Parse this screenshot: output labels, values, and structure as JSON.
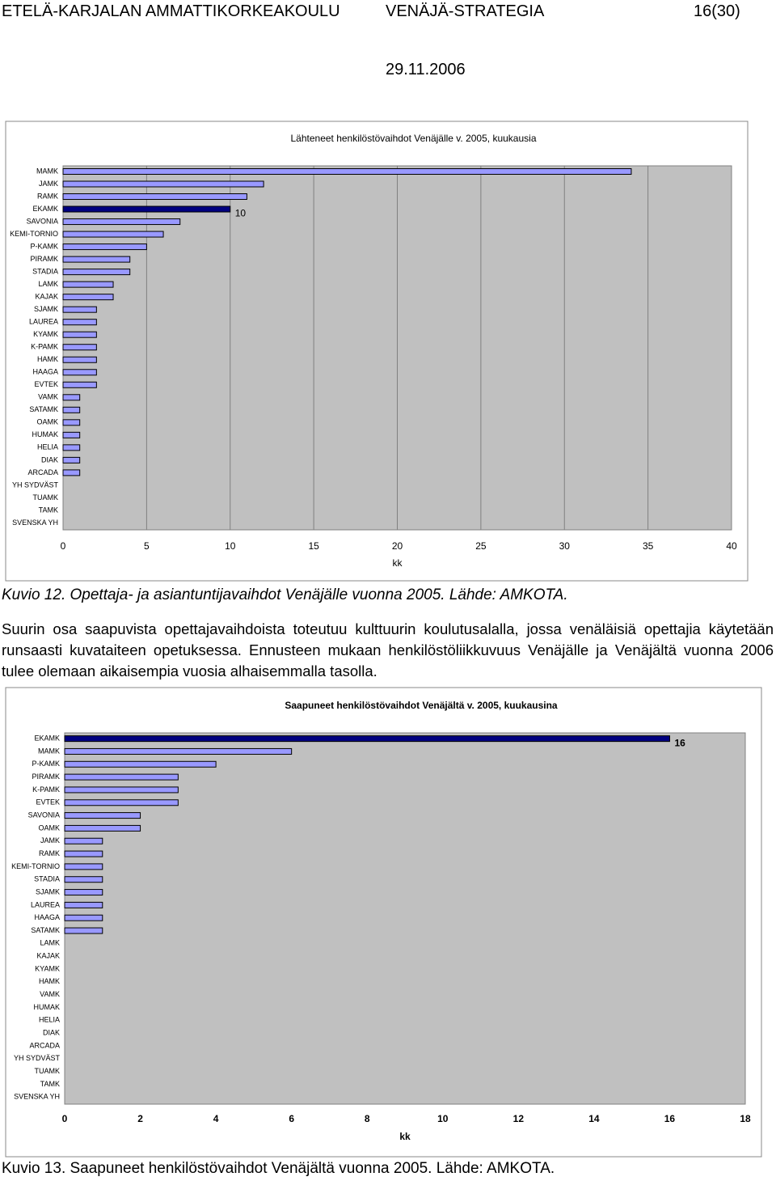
{
  "header": {
    "school": "ETELÄ-KARJALAN AMMATTIKORKEAKOULU",
    "document": "VENÄJÄ-STRATEGIA",
    "page": "16(30)",
    "date": "29.11.2006"
  },
  "captions": [
    "Kuvio 12. Opettaja- ja asiantuntijavaihdot Venäjälle vuonna 2005. Lähde: AMKOTA.",
    "Kuvio 13. Saapuneet henkilöstövaihdot Venäjältä vuonna 2005. Lähde: AMKOTA."
  ],
  "paragraph": "Suurin osa saapuvista opettajavaihdoista toteutuu kulttuurin koulutusalalla, jossa venäläisiä opettajia käytetään runsaasti kuvataiteen opetuksessa. Ennusteen mukaan henkilöstöliikkuvuus Venäjälle ja Venäjältä vuonna 2006 tulee olemaan aikaisempia vuosia alhaisemmalla tasolla.",
  "chart_data": [
    {
      "type": "bar",
      "orientation": "horizontal",
      "title": "Lähteneet henkilöstövaihdot Venäjälle v. 2005, kuukausia",
      "x_label": "kk",
      "categories": [
        "MAMK",
        "JAMK",
        "RAMK",
        "EKAMK",
        "SAVONIA",
        "KEMI-TORNIO",
        "P-KAMK",
        "PIRAMK",
        "STADIA",
        "LAMK",
        "KAJAK",
        "SJAMK",
        "LAUREA",
        "KYAMK",
        "K-PAMK",
        "HAMK",
        "HAAGA",
        "EVTEK",
        "VAMK",
        "SATAMK",
        "OAMK",
        "HUMAK",
        "HELIA",
        "DIAK",
        "ARCADA",
        "YH SYDVÄST",
        "TUAMK",
        "TAMK",
        "SVENSKA YH"
      ],
      "values": [
        34,
        12,
        11,
        10,
        7,
        6,
        5,
        4,
        4,
        3,
        3,
        2,
        2,
        2,
        2,
        2,
        2,
        2,
        1,
        1,
        1,
        1,
        1,
        1,
        1,
        0,
        0,
        0,
        0
      ],
      "value_labels": [
        null,
        null,
        null,
        "10",
        null,
        null,
        null,
        null,
        null,
        null,
        null,
        null,
        null,
        null,
        null,
        null,
        null,
        null,
        null,
        null,
        null,
        null,
        null,
        null,
        null,
        null,
        null,
        null,
        null
      ],
      "color": "#9999ff",
      "highlight_category": "EKAMK",
      "highlight_color": "#000080",
      "xlim": [
        0,
        40
      ],
      "xticks": [
        0,
        5,
        10,
        15,
        20,
        25,
        30,
        35,
        40
      ],
      "grid": true,
      "plot_background": "#c0c0c0"
    },
    {
      "type": "bar",
      "orientation": "horizontal",
      "title": "Saapuneet henkilöstövaihdot Venäjältä v. 2005, kuukausina",
      "x_label": "kk",
      "categories": [
        "EKAMK",
        "MAMK",
        "P-KAMK",
        "PIRAMK",
        "K-PAMK",
        "EVTEK",
        "SAVONIA",
        "OAMK",
        "JAMK",
        "RAMK",
        "KEMI-TORNIO",
        "STADIA",
        "SJAMK",
        "LAUREA",
        "HAAGA",
        "SATAMK",
        "LAMK",
        "KAJAK",
        "KYAMK",
        "HAMK",
        "VAMK",
        "HUMAK",
        "HELIA",
        "DIAK",
        "ARCADA",
        "YH SYDVÄST",
        "TUAMK",
        "TAMK",
        "SVENSKA YH"
      ],
      "values": [
        16,
        6,
        4,
        3,
        3,
        3,
        2,
        2,
        1,
        1,
        1,
        1,
        1,
        1,
        1,
        1,
        0,
        0,
        0,
        0,
        0,
        0,
        0,
        0,
        0,
        0,
        0,
        0,
        0
      ],
      "value_labels": [
        "16",
        null,
        null,
        null,
        null,
        null,
        null,
        null,
        null,
        null,
        null,
        null,
        null,
        null,
        null,
        null,
        null,
        null,
        null,
        null,
        null,
        null,
        null,
        null,
        null,
        null,
        null,
        null,
        null
      ],
      "color": "#9999ff",
      "highlight_category": "EKAMK",
      "highlight_color": "#000080",
      "xlim": [
        0,
        18
      ],
      "xticks": [
        0,
        2,
        4,
        6,
        8,
        10,
        12,
        14,
        16,
        18
      ],
      "grid": false,
      "plot_background": "#c0c0c0"
    }
  ]
}
